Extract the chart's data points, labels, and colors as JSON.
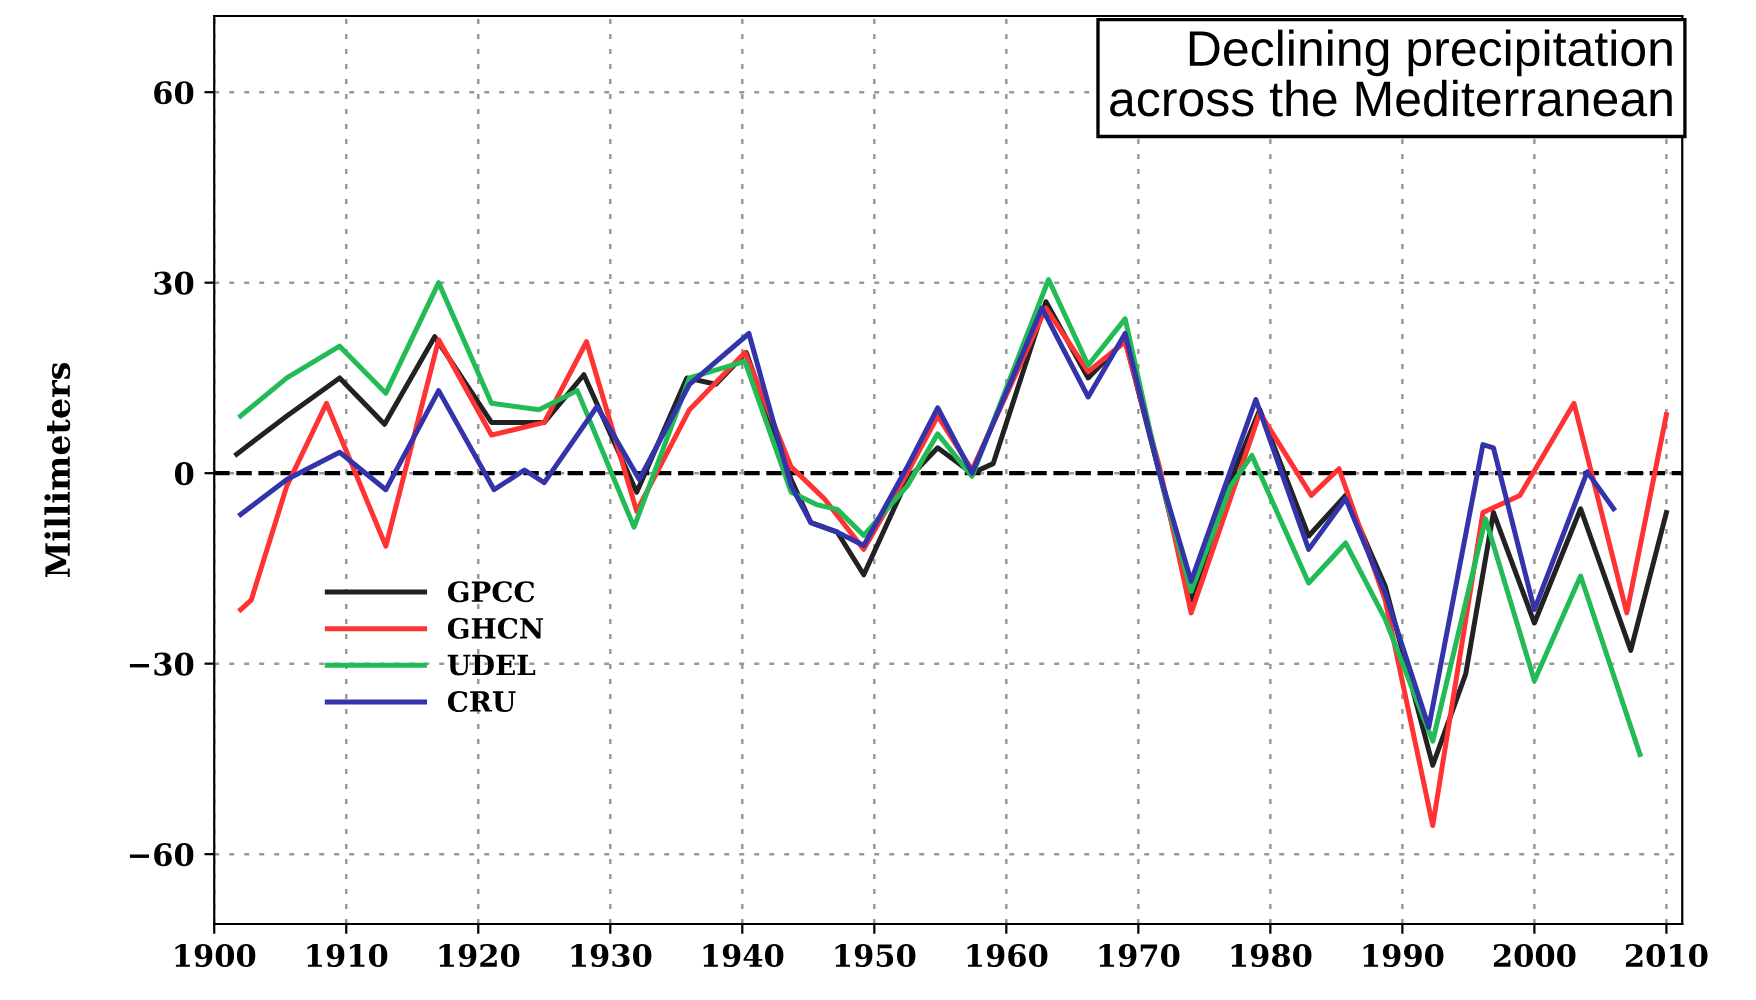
{
  "chart_data": {
    "type": "line",
    "title": "Declining precipitation\nacross the Mediterranean",
    "ylabel": "Millimeters",
    "xlim": [
      1900,
      2011.2
    ],
    "ylim": [
      -71,
      72
    ],
    "xticks": [
      1900,
      1910,
      1920,
      1930,
      1940,
      1950,
      1960,
      1970,
      1980,
      1990,
      2000,
      2010
    ],
    "yticks": [
      {
        "value": -60,
        "label": "−60"
      },
      {
        "value": -30,
        "label": "−30"
      },
      0,
      30,
      60
    ],
    "grid": true,
    "legend": "lower left",
    "line_style": "solid",
    "marker": "none",
    "ref_lines": [
      {
        "axis": "y",
        "value": 0,
        "color": "#000000",
        "line_style": "dashed"
      }
    ],
    "series": [
      {
        "name": "GPCC",
        "color": "#222222",
        "x": [
          1901.7,
          1905.5,
          1909.5,
          1912.9,
          1916.7,
          1921,
          1925,
          1928,
          1932,
          1935.8,
          1938,
          1940.3,
          1943.7,
          1945.2,
          1947.2,
          1949.2,
          1952.5,
          1954.8,
          1957.4,
          1959,
          1963,
          1966.2,
          1969,
          1971.6,
          1974,
          1977,
          1979.2,
          1982.9,
          1985.7,
          1988.7,
          1992.3,
          1994.8,
          1996.9,
          2000,
          2003.5,
          2007.3,
          2010
        ],
        "values": [
          3,
          9,
          15,
          7.7,
          21.5,
          8,
          8,
          15.5,
          -3,
          15,
          14,
          19,
          -1,
          -7.8,
          -9.3,
          -16,
          -1,
          4,
          0,
          1.5,
          27,
          15,
          21,
          0,
          -20,
          -1,
          10,
          -9.9,
          -3.5,
          -17.8,
          -46,
          -31.6,
          -6.2,
          -23.6,
          -5.6,
          -27.9,
          -6.2
        ]
      },
      {
        "name": "GHCN",
        "color": "#ff3333",
        "x": [
          1902,
          1902.8,
          1905.5,
          1908.5,
          1913,
          1917,
          1921,
          1925,
          1928.2,
          1932,
          1936,
          1940.2,
          1943.7,
          1946.2,
          1949.2,
          1952.5,
          1954.8,
          1957.4,
          1963,
          1966.2,
          1969,
          1971.6,
          1974,
          1979.2,
          1983.1,
          1985.2,
          1988.7,
          1992.3,
          1996.1,
          1998.9,
          2003,
          2007,
          2010
        ],
        "values": [
          -21.5,
          -20,
          -2,
          11,
          -11.5,
          21,
          6,
          8,
          20.7,
          -6,
          10,
          19,
          1,
          -4,
          -12,
          0,
          9,
          0.5,
          26,
          16,
          20.7,
          1,
          -22,
          9.5,
          -3.5,
          0.7,
          -20,
          -55.5,
          -6.2,
          -3.5,
          11,
          -22,
          9.2
        ]
      },
      {
        "name": "UDEL",
        "color": "#22bb55",
        "x": [
          1902,
          1905.5,
          1909.5,
          1913,
          1917,
          1921,
          1924.6,
          1927.5,
          1931.8,
          1936,
          1940.2,
          1943.7,
          1945.7,
          1947.2,
          1949.2,
          1952.5,
          1954.8,
          1957.4,
          1963.2,
          1966.2,
          1969,
          1971.6,
          1974,
          1977,
          1978.6,
          1982.9,
          1985.7,
          1988.7,
          1992.3,
          1996.3,
          2000,
          2003.5,
          2008
        ],
        "values": [
          9,
          15,
          20,
          12.6,
          30,
          11,
          10,
          13,
          -8.5,
          15,
          17.6,
          -3,
          -5,
          -5.7,
          -9.8,
          -2,
          6.2,
          -0.5,
          30.5,
          17,
          24.3,
          0,
          -18.6,
          -2,
          2.8,
          -17.3,
          -11,
          -23,
          -42.2,
          -7.2,
          -32.7,
          -16.2,
          -44.3
        ]
      },
      {
        "name": "CRU",
        "color": "#3333aa",
        "x": [
          1902,
          1905.5,
          1909.5,
          1913,
          1917,
          1921.2,
          1923.5,
          1925,
          1929,
          1932.2,
          1936,
          1940.5,
          1943.7,
          1945.2,
          1947.2,
          1949.2,
          1952.5,
          1954.8,
          1957.4,
          1962.7,
          1966.2,
          1969,
          1971.6,
          1974,
          1978.9,
          1982.9,
          1985.7,
          1988.7,
          1992,
          1996.1,
          1996.9,
          2000,
          2004,
          2006
        ],
        "values": [
          -6.5,
          -1,
          3.3,
          -2.6,
          13,
          -2.6,
          0.5,
          -1.5,
          10.5,
          -1,
          14,
          22,
          -2,
          -7.8,
          -9.3,
          -11.4,
          1,
          10.3,
          0,
          26,
          12,
          22,
          0,
          -17,
          11.6,
          -12,
          -4,
          -18.9,
          -40,
          4.5,
          4,
          -21.5,
          0.2,
          -5.6
        ]
      }
    ]
  }
}
